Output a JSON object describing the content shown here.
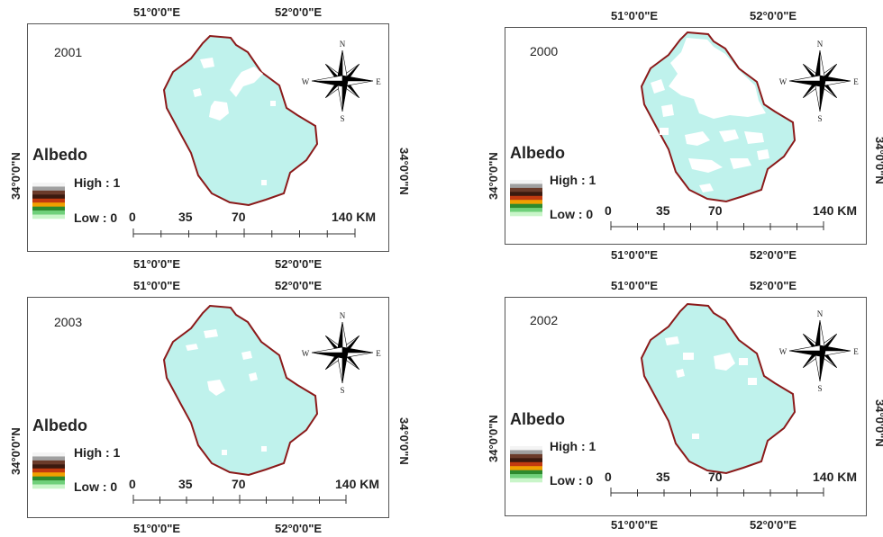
{
  "colors": {
    "region_fill": "#bff2ec",
    "boundary": "#8b1a1a",
    "high_patch": "#ffffff",
    "ramp": [
      "#f4f4f4",
      "#a0a0a0",
      "#6b3b2a",
      "#3b1a0f",
      "#c23a10",
      "#f0a000",
      "#2d8a2d",
      "#6fd07a",
      "#c9f5c9"
    ]
  },
  "labels": {
    "lon1": "51°0'0\"E",
    "lon2": "52°0'0\"E",
    "lat": "34°0'0\"N",
    "legend_title": "Albedo",
    "legend_high": "High : 1",
    "legend_low": "Low : 0",
    "scale_ticks": [
      "0",
      "35",
      "70",
      "140 KM"
    ],
    "compass": {
      "n": "N",
      "s": "S",
      "e": "E",
      "w": "W"
    }
  },
  "panels": [
    {
      "id": "p2001",
      "year": "2001",
      "icon": "compass-rose-icon"
    },
    {
      "id": "p2000",
      "year": "2000",
      "icon": "compass-rose-icon"
    },
    {
      "id": "p2003",
      "year": "2003",
      "icon": "compass-rose-icon"
    },
    {
      "id": "p2002",
      "year": "2002",
      "icon": "compass-rose-icon"
    }
  ]
}
